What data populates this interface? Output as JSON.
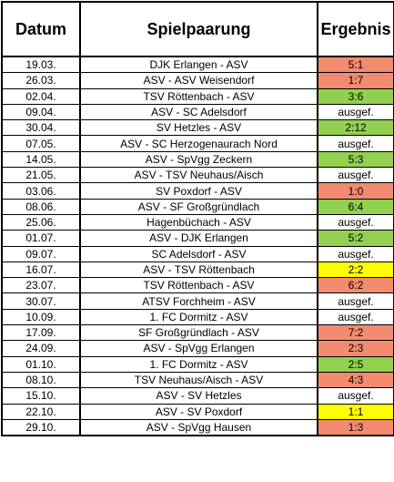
{
  "headers": {
    "date": "Datum",
    "match": "Spielpaarung",
    "result": "Ergebnis"
  },
  "colors": {
    "loss": "#f28b6f",
    "win": "#92d050",
    "draw": "#ffff00",
    "none": "#ffffff"
  },
  "rows": [
    {
      "date": "19.03.",
      "match": "DJK Erlangen - ASV",
      "result": "5:1",
      "status": "loss"
    },
    {
      "date": "26.03.",
      "match": "ASV - ASV Weisendorf",
      "result": "1:7",
      "status": "loss"
    },
    {
      "date": "02.04.",
      "match": "TSV Röttenbach - ASV",
      "result": "3:6",
      "status": "win"
    },
    {
      "date": "09.04.",
      "match": "ASV - SC Adelsdorf",
      "result": "ausgef.",
      "status": "none"
    },
    {
      "date": "30.04.",
      "match": "SV Hetzles - ASV",
      "result": "2:12",
      "status": "win"
    },
    {
      "date": "07.05.",
      "match": "ASV - SC Herzogenaurach Nord",
      "result": "ausgef.",
      "status": "none"
    },
    {
      "date": "14.05.",
      "match": "ASV - SpVgg Zeckern",
      "result": "5:3",
      "status": "win"
    },
    {
      "date": "21.05.",
      "match": "ASV - TSV Neuhaus/Aisch",
      "result": "ausgef.",
      "status": "none"
    },
    {
      "date": "03.06.",
      "match": "SV Poxdorf - ASV",
      "result": "1:0",
      "status": "loss"
    },
    {
      "date": "08.06.",
      "match": "ASV - SF Großgründlach",
      "result": "6:4",
      "status": "win"
    },
    {
      "date": "25.06.",
      "match": "Hagenbüchach - ASV",
      "result": "ausgef.",
      "status": "none"
    },
    {
      "date": "01.07.",
      "match": "ASV - DJK Erlangen",
      "result": "5:2",
      "status": "win"
    },
    {
      "date": "09.07.",
      "match": "SC Adelsdorf - ASV",
      "result": "ausgef.",
      "status": "none"
    },
    {
      "date": "16.07.",
      "match": "ASV - TSV Röttenbach",
      "result": "2:2",
      "status": "draw"
    },
    {
      "date": "23.07.",
      "match": "TSV Röttenbach - ASV",
      "result": "6:2",
      "status": "loss"
    },
    {
      "date": "30.07.",
      "match": "ATSV Forchheim - ASV",
      "result": "ausgef.",
      "status": "none"
    },
    {
      "date": "10.09.",
      "match": "1. FC Dormitz - ASV",
      "result": "ausgef.",
      "status": "none"
    },
    {
      "date": "17.09.",
      "match": "SF Großgründlach - ASV",
      "result": "7:2",
      "status": "loss"
    },
    {
      "date": "24.09.",
      "match": "ASV - SpVgg Erlangen",
      "result": "2:3",
      "status": "loss"
    },
    {
      "date": "01.10.",
      "match": "1. FC Dormitz - ASV",
      "result": "2:5",
      "status": "win"
    },
    {
      "date": "08.10.",
      "match": "TSV Neuhaus/Aisch - ASV",
      "result": "4:3",
      "status": "loss"
    },
    {
      "date": "15.10.",
      "match": "ASV - SV Hetzles",
      "result": "ausgef.",
      "status": "none"
    },
    {
      "date": "22.10.",
      "match": "ASV - SV Poxdorf",
      "result": "1:1",
      "status": "draw"
    },
    {
      "date": "29.10.",
      "match": "ASV - SpVgg Hausen",
      "result": "1:3",
      "status": "loss"
    }
  ]
}
